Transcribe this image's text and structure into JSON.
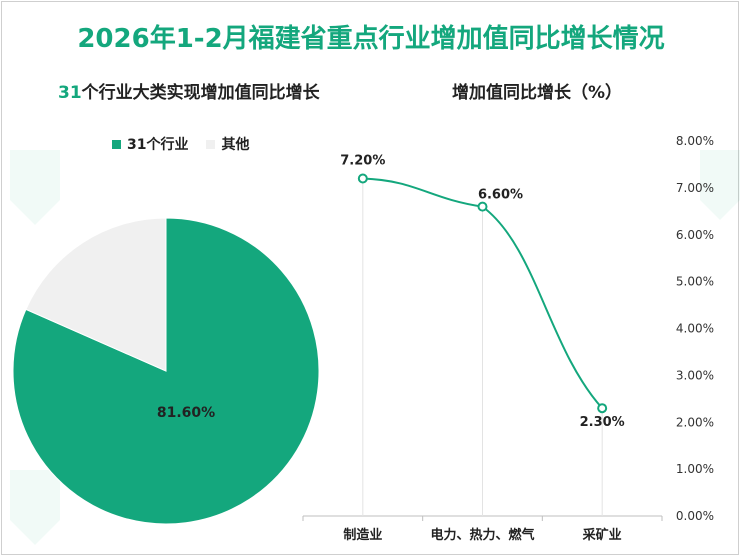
{
  "title": "2026年1-2月福建省重点行业增加值同比增长情况",
  "pie_title_num": "31",
  "pie_title_text": "个行业大类实现增加值同比增长",
  "line_title": "增加值同比增长（%）",
  "colors": {
    "accent": "#14a77d",
    "other": "#f0f0f0",
    "text": "#222222"
  },
  "chart_data": [
    {
      "type": "pie",
      "title": "31个行业大类实现增加值同比增长",
      "slices": [
        {
          "name": "31个行业",
          "value": 81.6,
          "label": "81.60%",
          "color": "#14a77d"
        },
        {
          "name": "其他",
          "value": 18.4,
          "label": "",
          "color": "#f0f0f0"
        }
      ],
      "legend_position": "top-left"
    },
    {
      "type": "line",
      "title": "增加值同比增长（%）",
      "categories": [
        "制造业",
        "电力、热力、燃气",
        "采矿业"
      ],
      "series": [
        {
          "values": [
            7.2,
            6.6,
            2.3
          ],
          "labels": [
            "7.20%",
            "6.60%",
            "2.30%"
          ]
        }
      ],
      "ylim": [
        0,
        8
      ],
      "yticks": [
        "0.00%",
        "1.00%",
        "2.00%",
        "3.00%",
        "4.00%",
        "5.00%",
        "6.00%",
        "7.00%",
        "8.00%"
      ],
      "y_axis_side": "right",
      "grid": false
    }
  ]
}
